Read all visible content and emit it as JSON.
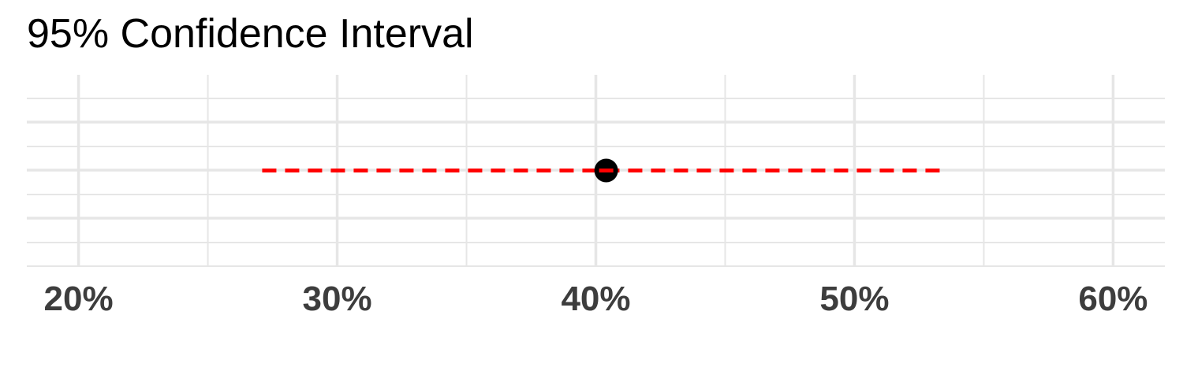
{
  "chart_data": {
    "type": "scatter",
    "title": "95% Confidence Interval",
    "xlabel": "",
    "ylabel": "",
    "xlim": [
      18,
      62
    ],
    "x_ticks": [
      20,
      30,
      40,
      50,
      60
    ],
    "x_tick_labels": [
      "20%",
      "30%",
      "40%",
      "50%",
      "60%"
    ],
    "x_minor_ticks": [
      25,
      35,
      45,
      55
    ],
    "grid": true,
    "point": {
      "x": 40.4
    },
    "interval": {
      "lower": 27.1,
      "upper": 53.6
    },
    "colors": {
      "point": "#000000",
      "interval": "#ff0000",
      "grid": "#e6e6e6",
      "tick_label": "#3d3d3d"
    }
  }
}
